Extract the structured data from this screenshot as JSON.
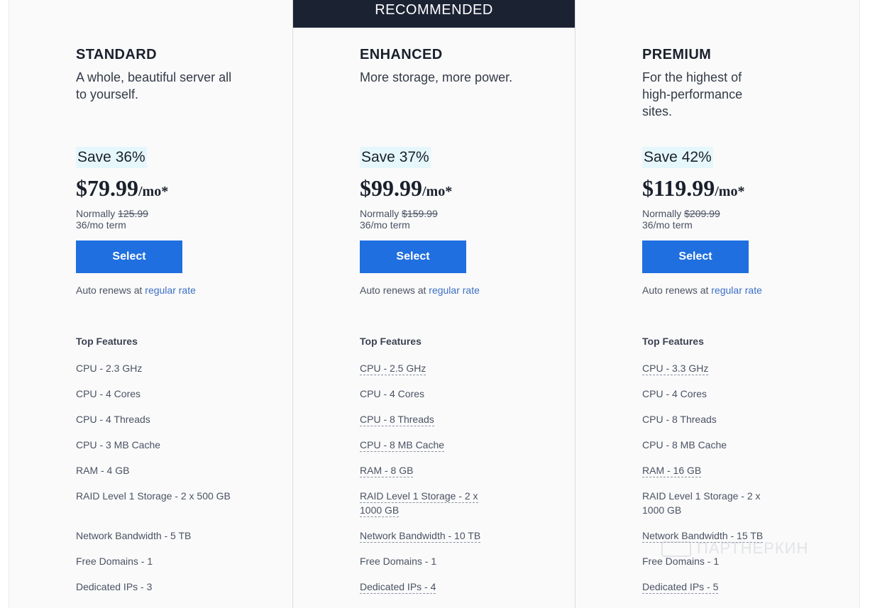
{
  "recommended_label": "RECOMMENDED",
  "plans": [
    {
      "name": "STANDARD",
      "description": "A whole, beautiful server all to yourself.",
      "save": "Save 36%",
      "price": "$79.99",
      "per": "/mo*",
      "normally_label": "Normally",
      "normally_price": "125.99",
      "term": "36/mo term",
      "select_label": "Select",
      "renew_text": "Auto renews at",
      "renew_link": "regular rate",
      "features_title": "Top Features",
      "features": [
        "CPU - 2.3 GHz",
        "CPU - 4 Cores",
        "CPU - 4 Threads",
        "CPU - 3 MB Cache",
        "RAM - 4 GB",
        "RAID Level 1 Storage - 2 x 500 GB",
        "Network Bandwidth - 5 TB",
        "Free Domains - 1",
        "Dedicated IPs - 3"
      ]
    },
    {
      "name": "ENHANCED",
      "description": "More storage, more power.",
      "save": "Save 37%",
      "price": "$99.99",
      "per": "/mo*",
      "normally_label": "Normally",
      "normally_price": "$159.99",
      "term": "36/mo term",
      "select_label": "Select",
      "renew_text": "Auto renews at",
      "renew_link": "regular rate",
      "features_title": "Top Features",
      "features": [
        "CPU - 2.5 GHz",
        "CPU - 4 Cores",
        "CPU - 8 Threads",
        "CPU - 8 MB Cache",
        "RAM - 8 GB",
        "RAID Level 1 Storage - 2 x 1000 GB",
        "Network Bandwidth - 10 TB",
        "Free Domains - 1",
        "Dedicated IPs - 4"
      ]
    },
    {
      "name": "PREMIUM",
      "description": "For the highest of high-performance sites.",
      "save": "Save 42%",
      "price": "$119.99",
      "per": "/mo*",
      "normally_label": "Normally",
      "normally_price": "$209.99",
      "term": "36/mo term",
      "select_label": "Select",
      "renew_text": "Auto renews at",
      "renew_link": "regular rate",
      "features_title": "Top Features",
      "features": [
        "CPU - 3.3 GHz",
        "CPU - 4 Cores",
        "CPU - 8 Threads",
        "CPU - 8 MB Cache",
        "RAM - 16 GB",
        "RAID Level 1 Storage - 2 x 1000 GB",
        "Network Bandwidth - 15 TB",
        "Free Domains - 1",
        "Dedicated IPs - 5"
      ]
    }
  ],
  "watermark": "ПАРТНЕРКИН",
  "colors": {
    "banner": "#1b2333",
    "button": "#1f6fe0",
    "save_highlight": "#e6f7fb",
    "link": "#3a6fc5"
  }
}
